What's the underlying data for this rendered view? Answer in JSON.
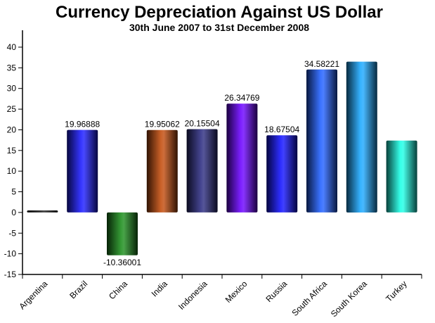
{
  "chart_data": {
    "type": "bar",
    "title": "Currency Depreciation Against US Dollar",
    "subtitle": "30th June 2007 to 31st December 2008",
    "xlabel": "",
    "ylabel": "",
    "ylim": [
      -15,
      45
    ],
    "yticks": [
      -15,
      -10,
      -5,
      0,
      5,
      10,
      15,
      20,
      25,
      30,
      35,
      40
    ],
    "grid": false,
    "categories": [
      "Argentina",
      "Brazil",
      "China",
      "India",
      "Indonesia",
      "Mexico",
      "Russia",
      "South Africa",
      "South Korea",
      "Turkey"
    ],
    "values": [
      0.5,
      19.96888,
      -10.36001,
      19.95062,
      20.15504,
      26.34769,
      18.67504,
      34.58221,
      36.5,
      17.4
    ],
    "data_labels": [
      "",
      "19.96888",
      "-10.36001",
      "19.95062",
      "20.15504",
      "26.34769",
      "18.67504",
      "34.58221",
      "",
      ""
    ],
    "colors": [
      "#1a1a1a",
      "#1a1aff",
      "#1a8c1a",
      "#c24a0a",
      "#2a2a80",
      "#6a00ff",
      "#1010ff",
      "#1f5fff",
      "#1aa8ff",
      "#1affe6"
    ]
  }
}
